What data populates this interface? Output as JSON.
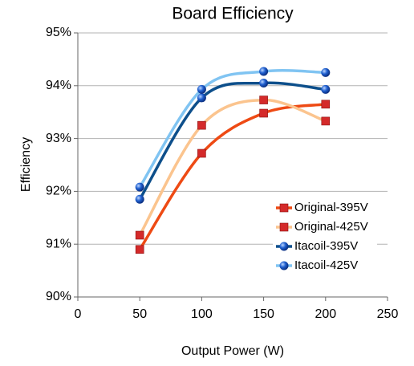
{
  "chart_data": {
    "type": "line",
    "title": "Board Efficiency",
    "x_label": "Output Power (W)",
    "y_label": "Efficiency",
    "x": [
      50,
      100,
      150,
      200
    ],
    "series": [
      {
        "name": "Original-395V",
        "color": "#ee4a14",
        "marker": "square",
        "marker_color": "#d42a2a",
        "values": [
          90.9,
          92.72,
          93.48,
          93.65
        ]
      },
      {
        "name": "Original-425V",
        "color": "#fbc48e",
        "marker": "square",
        "marker_color": "#d42a2a",
        "values": [
          91.17,
          93.25,
          93.73,
          93.33
        ]
      },
      {
        "name": "Itacoil-395V",
        "color": "#0d4f8b",
        "marker": "circle",
        "marker_color": "#1f5fcf",
        "values": [
          91.85,
          93.77,
          94.05,
          93.93
        ]
      },
      {
        "name": "Itacoil-425V",
        "color": "#80c4f2",
        "marker": "circle",
        "marker_color": "#1f5fcf",
        "values": [
          92.08,
          93.93,
          94.27,
          94.25
        ]
      }
    ],
    "xlim": [
      0,
      250
    ],
    "xticks": [
      0,
      50,
      100,
      150,
      200,
      250
    ],
    "ylim": [
      90,
      95
    ],
    "yticks": [
      {
        "value": 90,
        "label": "90%"
      },
      {
        "value": 91,
        "label": "91%"
      },
      {
        "value": 92,
        "label": "92%"
      },
      {
        "value": 93,
        "label": "93%"
      },
      {
        "value": 94,
        "label": "94%"
      },
      {
        "value": 95,
        "label": "95%"
      }
    ],
    "grid": true,
    "smooth": true,
    "legend": "lower right"
  }
}
